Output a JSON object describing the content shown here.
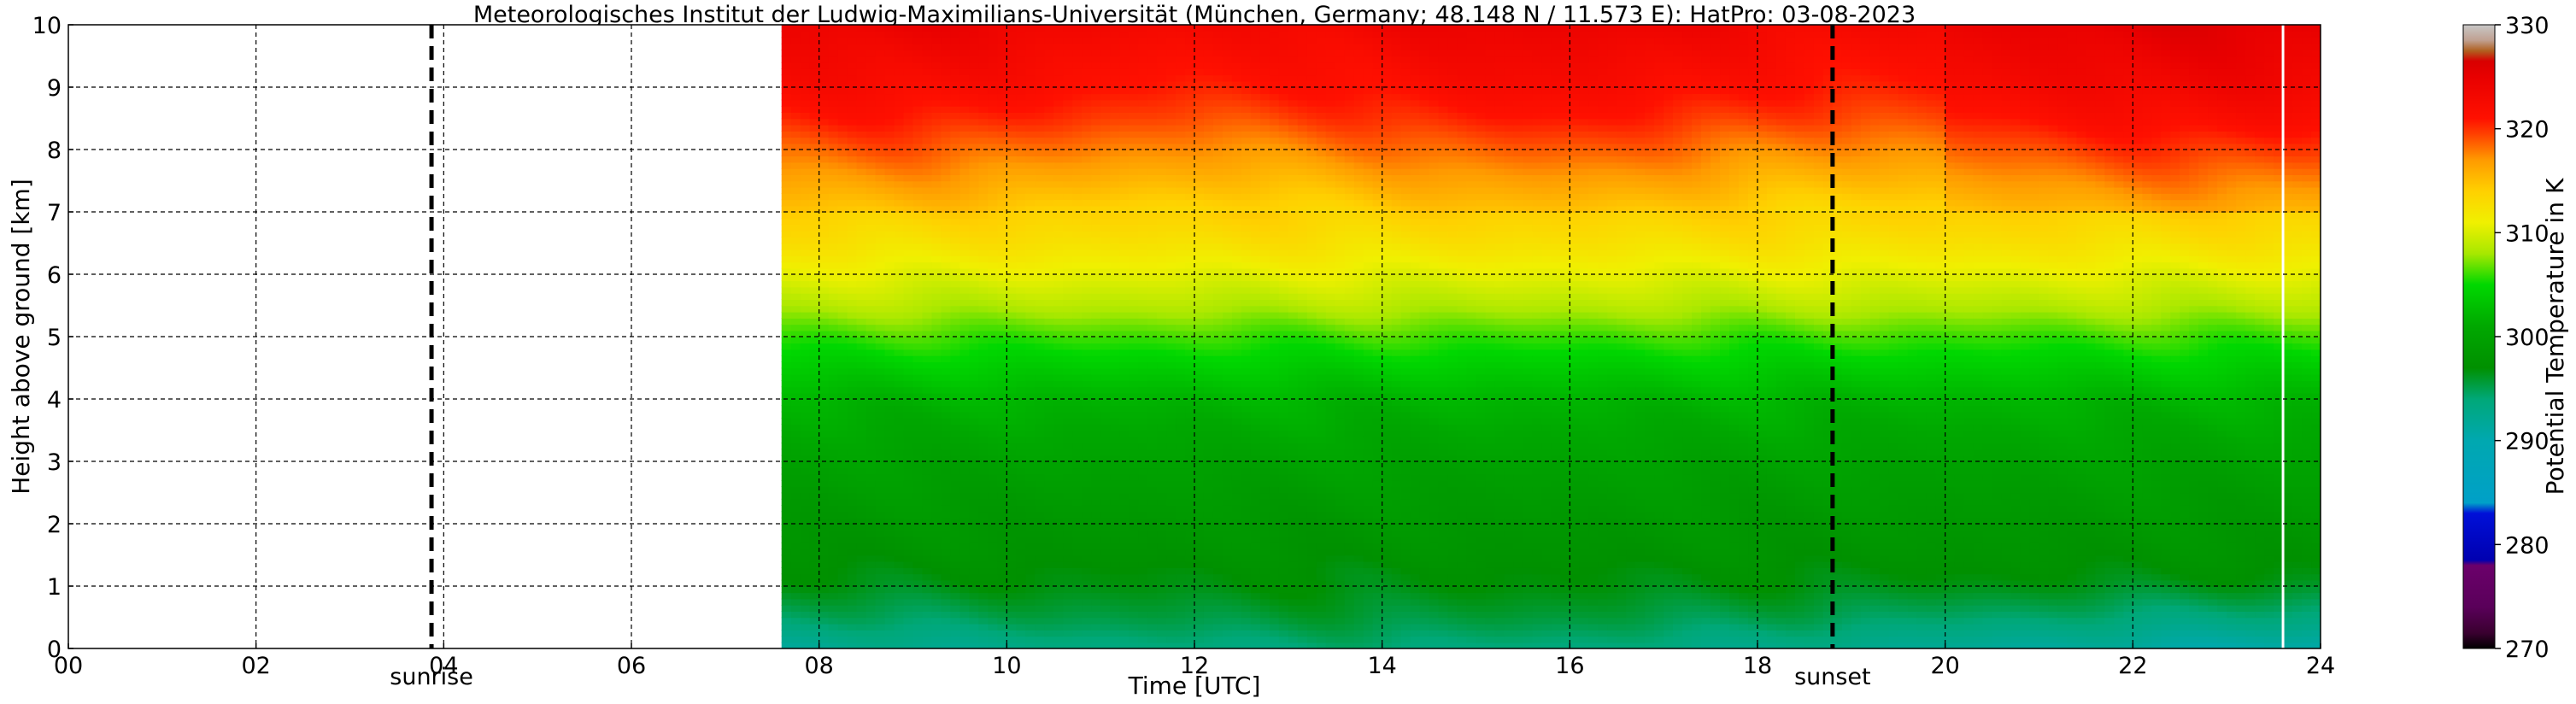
{
  "chart_data": {
    "type": "heatmap",
    "title": "Meteorologisches Institut der Ludwig-Maximilians-Universität (München, Germany; 48.148 N / 11.573 E):    HatPro: 03-08-2023",
    "xlabel": "Time [UTC]",
    "ylabel": "Height above ground [km]",
    "xlim": [
      0,
      24
    ],
    "ylim": [
      0,
      10
    ],
    "x_ticks": [
      0,
      2,
      4,
      6,
      8,
      10,
      12,
      14,
      16,
      18,
      20,
      22,
      24
    ],
    "x_tick_labels": [
      "00",
      "02",
      "04",
      "06",
      "08",
      "10",
      "12",
      "14",
      "16",
      "18",
      "20",
      "22",
      "24"
    ],
    "y_ticks": [
      0,
      1,
      2,
      3,
      4,
      5,
      6,
      7,
      8,
      9,
      10
    ],
    "y_tick_labels": [
      "0",
      "1",
      "2",
      "3",
      "4",
      "5",
      "6",
      "7",
      "8",
      "9",
      "10"
    ],
    "grid": true,
    "data_start_hour": 7.6,
    "data_end_hour": 24,
    "gap_hours": [
      23.6
    ],
    "events": [
      {
        "hour": 3.87,
        "label": "sunrise"
      },
      {
        "hour": 18.8,
        "label": "sunset"
      }
    ],
    "colorbar": {
      "label": "Potential Temperature in K",
      "vmin": 270,
      "vmax": 330,
      "ticks": [
        270,
        280,
        290,
        300,
        310,
        320,
        330
      ],
      "tick_labels": [
        "270",
        "280",
        "290",
        "300",
        "310",
        "320",
        "330"
      ],
      "color_stops": [
        {
          "value": 270,
          "color": "#000000"
        },
        {
          "value": 271.5,
          "color": "#3a0030"
        },
        {
          "value": 274,
          "color": "#5a005a"
        },
        {
          "value": 278,
          "color": "#6b006b"
        },
        {
          "value": 278.5,
          "color": "#0000b0"
        },
        {
          "value": 283,
          "color": "#0010d8"
        },
        {
          "value": 284,
          "color": "#00a0c8"
        },
        {
          "value": 290,
          "color": "#00a8b0"
        },
        {
          "value": 294,
          "color": "#00a878"
        },
        {
          "value": 297,
          "color": "#009000"
        },
        {
          "value": 301,
          "color": "#00a800"
        },
        {
          "value": 305,
          "color": "#00d800"
        },
        {
          "value": 308,
          "color": "#a8e800"
        },
        {
          "value": 311,
          "color": "#f0f000"
        },
        {
          "value": 314,
          "color": "#ffd000"
        },
        {
          "value": 317,
          "color": "#ff9a00"
        },
        {
          "value": 319.5,
          "color": "#ff4000"
        },
        {
          "value": 321,
          "color": "#ff1000"
        },
        {
          "value": 325,
          "color": "#e80000"
        },
        {
          "value": 326.5,
          "color": "#d80000"
        },
        {
          "value": 327.5,
          "color": "#b06020"
        },
        {
          "value": 328.5,
          "color": "#c0a090"
        },
        {
          "value": 330,
          "color": "#c8c8c8"
        }
      ]
    },
    "profile_mean": {
      "heights_km": [
        0,
        0.5,
        1,
        1.5,
        2,
        2.5,
        3,
        3.5,
        4,
        4.5,
        5,
        5.5,
        6,
        6.5,
        7,
        7.5,
        8,
        8.5,
        9,
        9.5,
        10
      ],
      "theta_K": [
        292,
        294.5,
        296.5,
        297.5,
        298.2,
        299,
        300,
        301,
        302,
        304,
        306,
        308.5,
        310.5,
        312.5,
        314,
        316,
        318,
        320,
        321.5,
        322.5,
        323.5
      ]
    }
  }
}
